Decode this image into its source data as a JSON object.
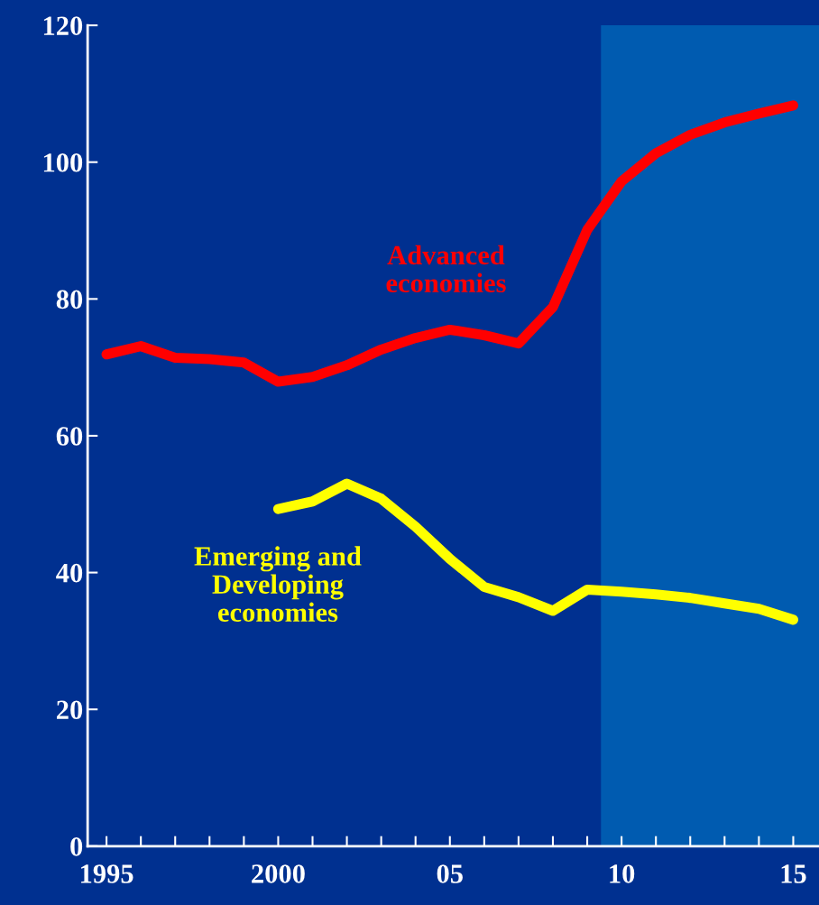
{
  "chart_data": {
    "type": "line",
    "x": [
      1995,
      1996,
      1997,
      1998,
      1999,
      2000,
      2001,
      2002,
      2003,
      2004,
      2005,
      2006,
      2007,
      2008,
      2009,
      2010,
      2011,
      2012,
      2013,
      2014,
      2015
    ],
    "series": [
      {
        "name": "Advanced\neconomies",
        "color": "#ff0000",
        "values": [
          71.9,
          73.1,
          71.4,
          71.2,
          70.7,
          67.9,
          68.6,
          70.3,
          72.6,
          74.3,
          75.5,
          74.7,
          73.5,
          78.8,
          90.1,
          97.2,
          101.3,
          104.0,
          105.8,
          107.1,
          108.3
        ]
      },
      {
        "name": "Emerging and\nDeveloping\neconomies",
        "color": "#ffff00",
        "values": [
          null,
          null,
          null,
          null,
          null,
          49.3,
          50.4,
          53.0,
          50.8,
          46.7,
          42.0,
          37.9,
          36.4,
          34.4,
          37.5,
          37.2,
          36.8,
          36.3,
          35.5,
          34.7,
          33.1
        ]
      }
    ],
    "xlim": [
      1994.45,
      2015.75
    ],
    "xticks": [
      1995,
      {
        "value": 1996,
        "label": null
      },
      {
        "value": 1997,
        "label": null
      },
      {
        "value": 1998,
        "label": null
      },
      {
        "value": 1999,
        "label": null
      },
      2000,
      {
        "value": 2001,
        "label": null
      },
      {
        "value": 2002,
        "label": null
      },
      {
        "value": 2003,
        "label": null
      },
      {
        "value": 2004,
        "label": null
      },
      {
        "value": 2005,
        "label": "05"
      },
      {
        "value": 2006,
        "label": null
      },
      {
        "value": 2007,
        "label": null
      },
      {
        "value": 2008,
        "label": null
      },
      {
        "value": 2009,
        "label": null
      },
      {
        "value": 2010,
        "label": "10"
      },
      {
        "value": 2011,
        "label": null
      },
      {
        "value": 2012,
        "label": null
      },
      {
        "value": 2013,
        "label": null
      },
      {
        "value": 2014,
        "label": null
      },
      {
        "value": 2015,
        "label": "15"
      }
    ],
    "ylim": [
      0,
      120
    ],
    "yticks": [
      0,
      20,
      40,
      60,
      80,
      100,
      120
    ],
    "bands": [
      {
        "axis": "x",
        "from": 2009.4,
        "to": 2015.75,
        "color": "#005bb0"
      }
    ],
    "grid": false,
    "legend": false,
    "marker": "none",
    "line_style": "solid"
  }
}
